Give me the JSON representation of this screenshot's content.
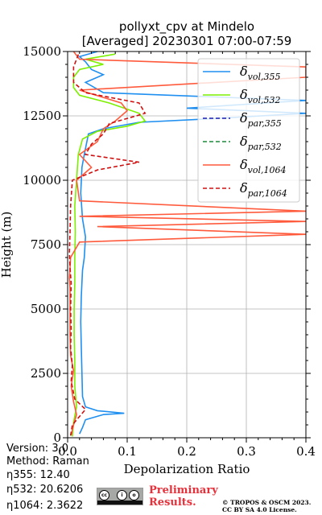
{
  "title_line1": "pollyxt_cpv at Mindelo",
  "title_line2": "[Averaged] 20230301 07:00-07:59",
  "info": {
    "version": "Version: 3.0",
    "method": "Method: Raman",
    "eta355": "η355:  12.40",
    "eta532": "η532: 20.6206",
    "eta1064": "η1064: 2.3622"
  },
  "preliminary": [
    "Preliminary",
    "Results."
  ],
  "copyright": [
    "© TROPOS & OSCM 2023.",
    "CC BY SA 4.0 License."
  ],
  "license_icon": "cc-by-sa-icon",
  "chart_data": {
    "type": "line",
    "xlabel": "Depolarization Ratio",
    "ylabel": "Height (m)",
    "xlim": [
      0,
      0.4
    ],
    "ylim": [
      0,
      15000
    ],
    "xticks": [
      0.0,
      0.1,
      0.2,
      0.3,
      0.4
    ],
    "xtick_labels": [
      "0.0",
      "0.1",
      "0.2",
      "0.3",
      "0.4"
    ],
    "yticks": [
      0,
      2500,
      5000,
      7500,
      10000,
      12500,
      15000
    ],
    "ytick_labels": [
      "0",
      "2500",
      "5000",
      "7500",
      "10000",
      "12500",
      "15000"
    ],
    "grid": true,
    "legend_position": "upper-right",
    "series": [
      {
        "name": "δ_vol,355",
        "color": "#1f8ff0",
        "dash": "solid",
        "points": [
          [
            0.02,
            150
          ],
          [
            0.025,
            400
          ],
          [
            0.03,
            700
          ],
          [
            0.06,
            900
          ],
          [
            0.095,
            950
          ],
          [
            0.05,
            1050
          ],
          [
            0.03,
            1200
          ],
          [
            0.025,
            1600
          ],
          [
            0.024,
            2500
          ],
          [
            0.023,
            3500
          ],
          [
            0.022,
            4500
          ],
          [
            0.023,
            5500
          ],
          [
            0.025,
            6500
          ],
          [
            0.028,
            7000
          ],
          [
            0.03,
            7800
          ],
          [
            0.025,
            8500
          ],
          [
            0.022,
            9500
          ],
          [
            0.024,
            10500
          ],
          [
            0.028,
            11000
          ],
          [
            0.035,
            11800
          ],
          [
            0.06,
            12000
          ],
          [
            0.12,
            12250
          ],
          [
            0.25,
            12400
          ],
          [
            0.4,
            12600
          ],
          [
            0.3,
            12700
          ],
          [
            0.2,
            12800
          ],
          [
            0.4,
            13100
          ],
          [
            0.06,
            13400
          ],
          [
            0.03,
            13800
          ],
          [
            0.06,
            14100
          ],
          [
            0.04,
            14300
          ],
          [
            0.03,
            14600
          ],
          [
            0.02,
            14800
          ],
          [
            0.05,
            15000
          ]
        ]
      },
      {
        "name": "δ_vol,532",
        "color": "#7cf000",
        "dash": "solid",
        "points": [
          [
            0.008,
            50
          ],
          [
            0.01,
            600
          ],
          [
            0.015,
            1200
          ],
          [
            0.012,
            2000
          ],
          [
            0.012,
            3000
          ],
          [
            0.011,
            4000
          ],
          [
            0.011,
            5000
          ],
          [
            0.012,
            6000
          ],
          [
            0.012,
            7000
          ],
          [
            0.013,
            8000
          ],
          [
            0.012,
            9000
          ],
          [
            0.015,
            10000
          ],
          [
            0.018,
            11000
          ],
          [
            0.025,
            11600
          ],
          [
            0.05,
            11900
          ],
          [
            0.1,
            12100
          ],
          [
            0.13,
            12300
          ],
          [
            0.12,
            12600
          ],
          [
            0.07,
            13000
          ],
          [
            0.02,
            13300
          ],
          [
            0.01,
            13600
          ],
          [
            0.01,
            14000
          ],
          [
            0.02,
            14300
          ],
          [
            0.06,
            14500
          ],
          [
            0.03,
            14700
          ],
          [
            0.08,
            14900
          ]
        ]
      },
      {
        "name": "δ_par,355",
        "color": "#1a1ab0",
        "dash": "dashed",
        "points": []
      },
      {
        "name": "δ_par,532",
        "color": "#1a8a3a",
        "dash": "dashed",
        "points": []
      },
      {
        "name": "δ_vol,1064",
        "color": "#ff5a3c",
        "dash": "solid",
        "points": [
          [
            0.006,
            100
          ],
          [
            0.01,
            500
          ],
          [
            0.015,
            900
          ],
          [
            0.01,
            1400
          ],
          [
            0.006,
            2000
          ],
          [
            0.01,
            2600
          ],
          [
            0.005,
            3200
          ],
          [
            0.004,
            4000
          ],
          [
            0.004,
            4600
          ],
          [
            0.004,
            5200
          ],
          [
            0.004,
            5800
          ],
          [
            0.003,
            6200
          ],
          [
            0.005,
            7000
          ],
          [
            0.02,
            7600
          ],
          [
            0.4,
            7900
          ],
          [
            0.05,
            8200
          ],
          [
            0.4,
            8400
          ],
          [
            0.02,
            8600
          ],
          [
            0.4,
            8800
          ],
          [
            0.02,
            9200
          ],
          [
            0.015,
            10000
          ],
          [
            0.04,
            10500
          ],
          [
            0.02,
            11000
          ],
          [
            0.05,
            11500
          ],
          [
            0.06,
            12000
          ],
          [
            0.08,
            12300
          ],
          [
            0.1,
            12700
          ],
          [
            0.09,
            13000
          ],
          [
            0.02,
            13500
          ],
          [
            0.4,
            14000
          ],
          [
            0.4,
            14400
          ],
          [
            0.02,
            14700
          ],
          [
            0.01,
            15000
          ]
        ]
      },
      {
        "name": "δ_par,1064",
        "color": "#d01010",
        "dash": "dashed",
        "points": [
          [
            0.005,
            80
          ],
          [
            0.008,
            500
          ],
          [
            0.03,
            1100
          ],
          [
            0.012,
            1500
          ],
          [
            0.006,
            2200
          ],
          [
            0.008,
            2800
          ],
          [
            0.005,
            3500
          ],
          [
            0.006,
            4200
          ],
          [
            0.005,
            5000
          ],
          [
            0.006,
            6000
          ],
          [
            0.004,
            6600
          ],
          [
            0.003,
            7200
          ],
          [
            0.004,
            8000
          ],
          [
            0.005,
            9000
          ],
          [
            0.008,
            10000
          ],
          [
            0.05,
            10400
          ],
          [
            0.12,
            10700
          ],
          [
            0.03,
            11000
          ],
          [
            0.04,
            11400
          ],
          [
            0.06,
            11800
          ],
          [
            0.07,
            12200
          ],
          [
            0.13,
            12600
          ],
          [
            0.12,
            13000
          ],
          [
            0.03,
            13400
          ],
          [
            0.01,
            13800
          ],
          [
            0.01,
            14400
          ],
          [
            0.02,
            15000
          ]
        ]
      }
    ]
  }
}
